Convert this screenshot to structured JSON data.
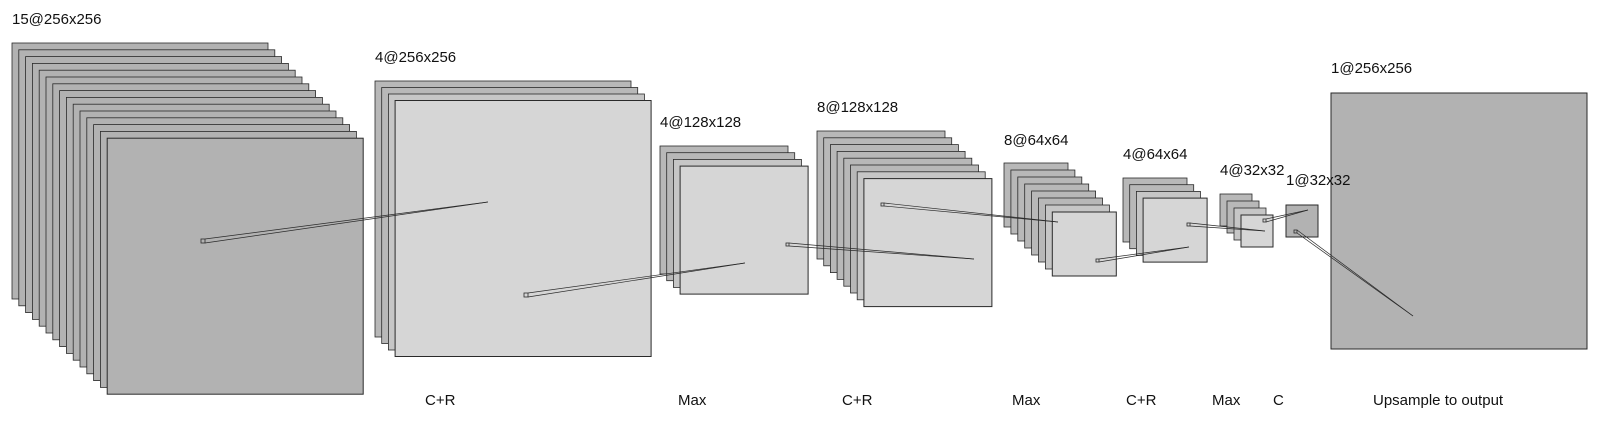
{
  "diagram": {
    "layers": [
      {
        "label": "15@256x256",
        "count": 15
      },
      {
        "label": "4@256x256",
        "count": 4
      },
      {
        "label": "4@128x128",
        "count": 4
      },
      {
        "label": "8@128x128",
        "count": 8
      },
      {
        "label": "8@64x64",
        "count": 8
      },
      {
        "label": "4@64x64",
        "count": 4
      },
      {
        "label": "4@32x32",
        "count": 4
      },
      {
        "label": "1@32x32",
        "count": 1
      },
      {
        "label": "1@256x256",
        "count": 1
      }
    ],
    "operations": [
      "C+R",
      "Max",
      "C+R",
      "Max",
      "C+R",
      "Max",
      "C",
      "Upsample to output"
    ],
    "colors": {
      "dark_map": "#b2b2b2",
      "light_map": "#d6d6d6",
      "stroke": "#2a2a2a",
      "text": "#111111"
    }
  }
}
